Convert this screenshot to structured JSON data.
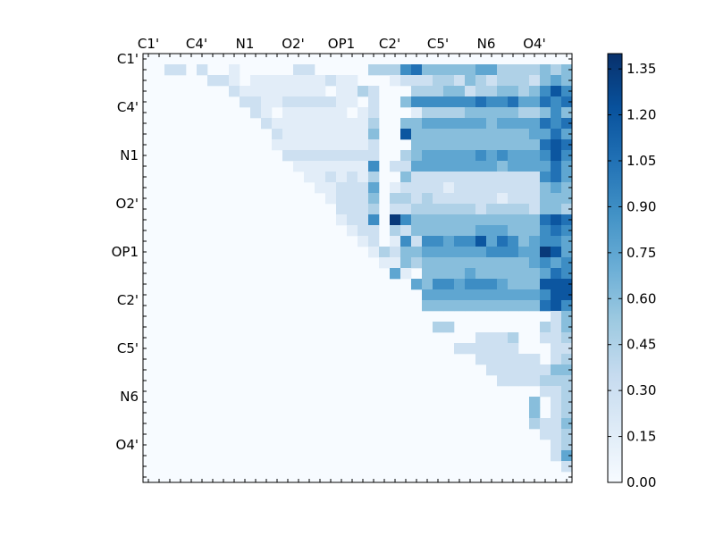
{
  "chart_data": {
    "type": "heatmap",
    "title": "",
    "xlabel": "",
    "ylabel": "",
    "grid": false,
    "n": 40,
    "x_tick_labels": [
      "C1'",
      "C4'",
      "N1",
      "O2'",
      "OP1",
      "C2'",
      "C5'",
      "N6",
      "O4'"
    ],
    "y_tick_labels": [
      "C1'",
      "C4'",
      "N1",
      "O2'",
      "OP1",
      "C2'",
      "C5'",
      "N6",
      "O4'"
    ],
    "tick_label_index_start": 0,
    "tick_label_index_step": 4.5,
    "x_tick_label_position": "top",
    "colormap": "Blues",
    "vmin": 0.0,
    "vmax": 1.4,
    "colorbar_ticks": [
      "0.00",
      "0.15",
      "0.30",
      "0.45",
      "0.60",
      "0.75",
      "0.90",
      "1.05",
      "1.20",
      "1.35"
    ],
    "colorbar_placement": "right",
    "matrix_rows": [
      "0000000000000000000000000000000000000000",
      "0022020010000022000003336744444553333434",
      "0000002210111111121100012223324323332454",
      "0000000021111111101132000333442334434686",
      "0000000002211222221102004666666766755767",
      "0000000000210111111012000133334444433464",
      "0000000000021111111113004455555545555767",
      "0000000000002111111114008444444444445575",
      "0000000000001111111112000444444444444787",
      "0000000000000222222222003455555656555686",
      "0000000000000011111116022555555554555575",
      "0000000000000001121213004222222222222675",
      "0000000000000000112225012222122222222454",
      "0000000000000000012224033232222221222444",
      "0000000000000000002223022333333233332443",
      "0000000000000000001226096444444444444787",
      "0000000000000000000122032444444555444676",
      "0000000000000000000012016266566857645665",
      "0000000000000000000001324455555566655985",
      "0000000000000000000000114344444444445656",
      "0000000000000000000000051044445444444576",
      "0000000000000000000000000546656665444888",
      "0000000000000000000000000055555555555688",
      "0000000000000000000000000044444444444786",
      "0000000000000000000000000000000000000024",
      "0000000000000000000000000003300000000324",
      "0000000000000000000000000000000222300223",
      "0000000000000000000000000000022222200022",
      "0000000000000000000000000000000222222023",
      "0000000000000000000000000000000022222244",
      "0000000000000000000000000000000002222333",
      "0000000000000000000000000000000000000223",
      "0000000000000000000000000000000000004023",
      "0000000000000000000000000000000000004023",
      "0000000000000000000000000000000000003224",
      "0000000000000000000000000000000000000223",
      "0000000000000000000000000000000000000023",
      "0000000000000000000000000000000000000025",
      "0000000000000000000000000000000000000002",
      "0000000000000000000000000000000000000000"
    ],
    "matrix_value_step": 0.15
  }
}
